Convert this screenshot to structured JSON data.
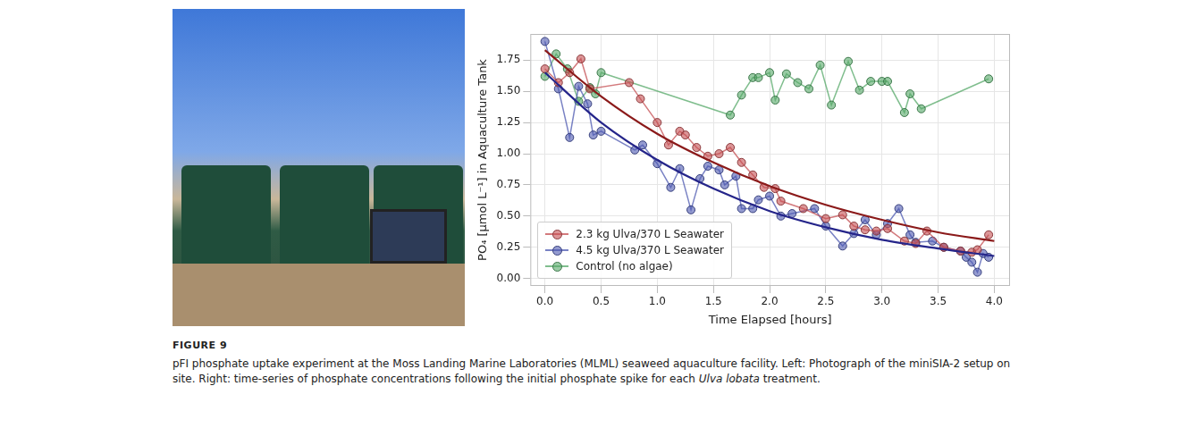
{
  "chart_data": {
    "type": "scatter",
    "x_label": "Time Elapsed [hours]",
    "y_label": "PO₄ [μmol L⁻¹] in Aquaculture Tank",
    "xlim": [
      -0.13,
      4.14
    ],
    "xticks": [
      {
        "value": 0,
        "label": "0.0"
      },
      {
        "value": 0.5,
        "label": "0.5"
      },
      {
        "value": 1,
        "label": "1.0"
      },
      {
        "value": 1.5,
        "label": "1.5"
      },
      {
        "value": 2,
        "label": "2.0"
      },
      {
        "value": 2.5,
        "label": "2.5"
      },
      {
        "value": 3,
        "label": "3.0"
      },
      {
        "value": 3.5,
        "label": "3.5"
      },
      {
        "value": 4,
        "label": "4.0"
      }
    ],
    "ylim": [
      -0.06,
      1.96
    ],
    "yticks": [
      {
        "value": 0,
        "label": "0.00"
      },
      {
        "value": 0.25,
        "label": "0.25"
      },
      {
        "value": 0.5,
        "label": "0.50"
      },
      {
        "value": 0.75,
        "label": "0.75"
      },
      {
        "value": 1,
        "label": "1.00"
      },
      {
        "value": 1.25,
        "label": "1.25"
      },
      {
        "value": 1.5,
        "label": "1.50"
      },
      {
        "value": 1.75,
        "label": "1.75"
      }
    ],
    "grid": true,
    "legend": "lower left",
    "series": [
      {
        "name": "2.3 kg Ulva/370 L Seawater",
        "color": "#c44e52",
        "marker": "circle",
        "line_style": "solid",
        "x": [
          0.0,
          0.12,
          0.22,
          0.32,
          0.4,
          0.75,
          0.85,
          1.0,
          1.1,
          1.2,
          1.25,
          1.35,
          1.45,
          1.55,
          1.65,
          1.75,
          1.85,
          1.95,
          2.05,
          2.1,
          2.3,
          2.5,
          2.65,
          2.75,
          2.85,
          2.95,
          3.05,
          3.2,
          3.3,
          3.4,
          3.55,
          3.7,
          3.8,
          3.85,
          3.95
        ],
        "values": [
          1.68,
          1.57,
          1.65,
          1.76,
          1.52,
          1.57,
          1.44,
          1.25,
          1.07,
          1.18,
          1.15,
          1.05,
          0.98,
          1.0,
          1.05,
          0.93,
          0.83,
          0.73,
          0.72,
          0.62,
          0.56,
          0.48,
          0.51,
          0.42,
          0.39,
          0.38,
          0.4,
          0.3,
          0.28,
          0.38,
          0.25,
          0.22,
          0.21,
          0.23,
          0.35
        ],
        "fit": {
          "color": "#8b1a1a",
          "x": [
            0,
            0.5,
            1,
            1.5,
            2,
            2.5,
            3,
            3.5,
            4
          ],
          "values": [
            1.83,
            1.46,
            1.16,
            0.93,
            0.74,
            0.59,
            0.47,
            0.37,
            0.3
          ]
        }
      },
      {
        "name": "4.5 kg Ulva/370 L Seawater",
        "color": "#4c58b0",
        "marker": "circle",
        "line_style": "solid",
        "x": [
          0.0,
          0.12,
          0.22,
          0.3,
          0.38,
          0.43,
          0.5,
          0.8,
          0.87,
          1.0,
          1.12,
          1.2,
          1.3,
          1.38,
          1.45,
          1.55,
          1.6,
          1.7,
          1.75,
          1.85,
          1.9,
          2.0,
          2.1,
          2.2,
          2.4,
          2.5,
          2.65,
          2.75,
          2.85,
          2.95,
          3.05,
          3.15,
          3.25,
          3.3,
          3.45,
          3.55,
          3.7,
          3.75,
          3.8,
          3.85,
          3.9,
          3.95
        ],
        "values": [
          1.9,
          1.52,
          1.13,
          1.54,
          1.4,
          1.15,
          1.18,
          1.03,
          1.07,
          0.92,
          0.73,
          0.88,
          0.55,
          0.8,
          0.9,
          0.87,
          0.75,
          0.82,
          0.56,
          0.56,
          0.63,
          0.66,
          0.5,
          0.52,
          0.56,
          0.42,
          0.26,
          0.36,
          0.47,
          0.35,
          0.44,
          0.56,
          0.35,
          0.29,
          0.3,
          0.25,
          0.22,
          0.17,
          0.13,
          0.05,
          0.2,
          0.17
        ],
        "fit": {
          "color": "#25258a",
          "x": [
            0,
            0.5,
            1,
            1.5,
            2,
            2.5,
            3,
            3.5,
            4
          ],
          "values": [
            1.65,
            1.25,
            0.95,
            0.72,
            0.54,
            0.41,
            0.31,
            0.24,
            0.18
          ]
        }
      },
      {
        "name": "Control (no algae)",
        "color": "#55a868",
        "marker": "circle",
        "line_style": "solid",
        "x": [
          0.0,
          0.1,
          0.2,
          0.3,
          0.4,
          0.45,
          0.5,
          1.65,
          1.75,
          1.85,
          1.9,
          2.0,
          2.05,
          2.15,
          2.25,
          2.35,
          2.45,
          2.55,
          2.7,
          2.8,
          2.9,
          3.0,
          3.05,
          3.2,
          3.25,
          3.35,
          3.95
        ],
        "values": [
          1.62,
          1.8,
          1.68,
          1.42,
          1.53,
          1.48,
          1.65,
          1.31,
          1.47,
          1.61,
          1.61,
          1.65,
          1.43,
          1.64,
          1.57,
          1.52,
          1.71,
          1.39,
          1.74,
          1.51,
          1.58,
          1.58,
          1.58,
          1.33,
          1.48,
          1.36,
          1.6
        ]
      }
    ]
  },
  "caption": {
    "label": "FIGURE 9",
    "text_before": "pFI phosphate uptake experiment at the Moss Landing Marine Laboratories (MLML) seaweed aquaculture facility. Left: Photograph of the miniSIA-2 setup on site. Right: time-series of phosphate concentrations following the initial phosphate spike for each ",
    "species": "Ulva lobata",
    "text_after": " treatment."
  }
}
